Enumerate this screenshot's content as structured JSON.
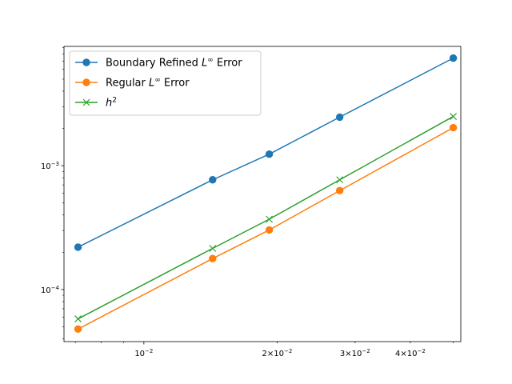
{
  "chart_data": {
    "type": "line",
    "xscale": "log",
    "yscale": "log",
    "xlim": [
      0.0066,
      0.052
    ],
    "ylim": [
      3.8e-05,
      0.0092
    ],
    "grid": false,
    "legend_position": "upper-left",
    "x": [
      0.0071,
      0.0143,
      0.0192,
      0.0277,
      0.05
    ],
    "x_ticks": [
      {
        "value": 0.01,
        "base": "10",
        "exp": "−2"
      },
      {
        "value": 0.02,
        "base": "2×10",
        "exp": "−2"
      },
      {
        "value": 0.03,
        "base": "3×10",
        "exp": "−2"
      },
      {
        "value": 0.04,
        "base": "4×10",
        "exp": "−2"
      }
    ],
    "y_ticks": [
      {
        "value": 0.0001,
        "base": "10",
        "exp": "−4"
      },
      {
        "value": 0.001,
        "base": "10",
        "exp": "−3"
      }
    ],
    "series": [
      {
        "name_pre": "Boundary Refined ",
        "name_var": "L",
        "name_sup": "∞",
        "name_post": " Error",
        "color": "#1f77b4",
        "marker": "circle",
        "values": [
          0.00022,
          0.00077,
          0.00124,
          0.00247,
          0.0074
        ]
      },
      {
        "name_pre": "Regular ",
        "name_var": "L",
        "name_sup": "∞",
        "name_post": " Error",
        "color": "#ff7f0e",
        "marker": "circle",
        "values": [
          4.8e-05,
          0.000178,
          0.000303,
          0.00063,
          0.00203
        ]
      },
      {
        "name_pre": "",
        "name_var": "h",
        "name_sup": "2",
        "name_post": "",
        "color": "#2ca02c",
        "marker": "x",
        "values": [
          5.8e-05,
          0.000215,
          0.00037,
          0.00077,
          0.0025
        ]
      }
    ]
  }
}
